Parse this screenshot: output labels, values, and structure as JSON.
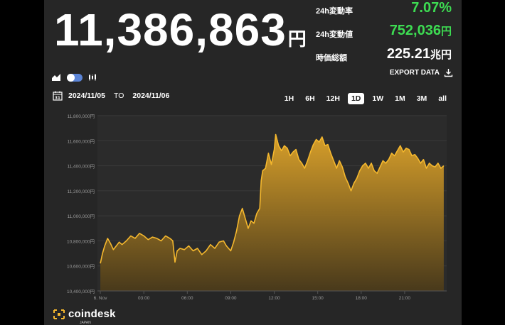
{
  "header": {
    "price": "11,386,863",
    "price_unit": "円",
    "stats": [
      {
        "label": "24h変動率",
        "value": "7.07%",
        "unit": "",
        "color": "#3ddc52"
      },
      {
        "label": "24h変動値",
        "value": "752,036",
        "unit": "円",
        "color": "#3ddc52"
      },
      {
        "label": "時価総額",
        "value": "225.21",
        "unit": "兆円",
        "color": "#ffffff"
      }
    ]
  },
  "toolbar": {
    "export_label": "EXPORT DATA",
    "icons": [
      "area-chart-icon",
      "toggle-switch",
      "candlestick-icon",
      "download-icon",
      "calendar-icon"
    ]
  },
  "date_range": {
    "calendar_day": "31",
    "from": "2024/11/05",
    "to_label": "TO",
    "to": "2024/11/06"
  },
  "ranges": [
    "1H",
    "6H",
    "12H",
    "1D",
    "1W",
    "1M",
    "3M",
    "all"
  ],
  "active_range": "1D",
  "brand": {
    "name": "coindesk",
    "sub": "JAPAN"
  },
  "chart_data": {
    "type": "area",
    "title": "",
    "xlabel": "",
    "ylabel": "",
    "ylim": [
      10400000,
      11800000
    ],
    "xlim": [
      -0.2,
      23.9
    ],
    "grid": true,
    "yticks": [
      10400000,
      10600000,
      10800000,
      11000000,
      11200000,
      11400000,
      11600000,
      11800000
    ],
    "ytick_labels": [
      "10,400,000円",
      "10,600,000円",
      "10,800,000円",
      "11,000,000円",
      "11,200,000円",
      "11,400,000円",
      "11,600,000円",
      "11,800,000円"
    ],
    "xticks": [
      0,
      3,
      6,
      9,
      12,
      15,
      18,
      21
    ],
    "xtick_labels": [
      "6. Nov",
      "03:00",
      "06:00",
      "09:00",
      "12:00",
      "15:00",
      "18:00",
      "21:00"
    ],
    "line_color": "#f5b82e",
    "series": [
      {
        "x": [
          0,
          0.15,
          0.3,
          0.5,
          0.7,
          0.9,
          1.1,
          1.3,
          1.5,
          1.8,
          2.1,
          2.4,
          2.7,
          3.0,
          3.3,
          3.6,
          3.9,
          4.2,
          4.5,
          4.8,
          5.0,
          5.15,
          5.3,
          5.5,
          5.8,
          6.1,
          6.4,
          6.7,
          7.0,
          7.3,
          7.6,
          7.9,
          8.2,
          8.5,
          8.7,
          9.0,
          9.2,
          9.4,
          9.6,
          9.8,
          10.0,
          10.2,
          10.4,
          10.6,
          10.8,
          11.0,
          11.1,
          11.2,
          11.4,
          11.6,
          11.8,
          12.0,
          12.1,
          12.3,
          12.5,
          12.7,
          12.9,
          13.1,
          13.3,
          13.5,
          13.7,
          13.9,
          14.1,
          14.3,
          14.5,
          14.7,
          14.9,
          15.1,
          15.3,
          15.5,
          15.7,
          15.9,
          16.1,
          16.3,
          16.5,
          16.7,
          16.9,
          17.1,
          17.3,
          17.5,
          17.7,
          17.9,
          18.1,
          18.3,
          18.5,
          18.7,
          18.9,
          19.1,
          19.3,
          19.5,
          19.7,
          19.9,
          20.1,
          20.3,
          20.5,
          20.7,
          20.9,
          21.1,
          21.3,
          21.5,
          21.7,
          21.9,
          22.1,
          22.3,
          22.5,
          22.7,
          22.9,
          23.1,
          23.3,
          23.5,
          23.7
        ],
        "values": [
          10620000,
          10700000,
          10760000,
          10820000,
          10780000,
          10730000,
          10760000,
          10790000,
          10770000,
          10800000,
          10840000,
          10820000,
          10860000,
          10840000,
          10810000,
          10830000,
          10820000,
          10800000,
          10840000,
          10820000,
          10800000,
          10630000,
          10720000,
          10740000,
          10730000,
          10760000,
          10720000,
          10740000,
          10690000,
          10720000,
          10770000,
          10740000,
          10790000,
          10800000,
          10760000,
          10720000,
          10790000,
          10880000,
          11000000,
          11060000,
          10980000,
          10900000,
          10960000,
          10940000,
          11020000,
          11060000,
          11280000,
          11360000,
          11380000,
          11500000,
          11410000,
          11530000,
          11650000,
          11560000,
          11520000,
          11560000,
          11540000,
          11480000,
          11510000,
          11530000,
          11450000,
          11420000,
          11380000,
          11440000,
          11510000,
          11570000,
          11610000,
          11590000,
          11630000,
          11560000,
          11570000,
          11500000,
          11440000,
          11380000,
          11440000,
          11390000,
          11310000,
          11260000,
          11200000,
          11260000,
          11300000,
          11360000,
          11400000,
          11420000,
          11380000,
          11420000,
          11360000,
          11340000,
          11390000,
          11440000,
          11420000,
          11450000,
          11500000,
          11480000,
          11520000,
          11560000,
          11510000,
          11540000,
          11530000,
          11480000,
          11490000,
          11460000,
          11420000,
          11450000,
          11380000,
          11420000,
          11400000,
          11390000,
          11420000,
          11380000,
          11400000
        ]
      }
    ]
  }
}
